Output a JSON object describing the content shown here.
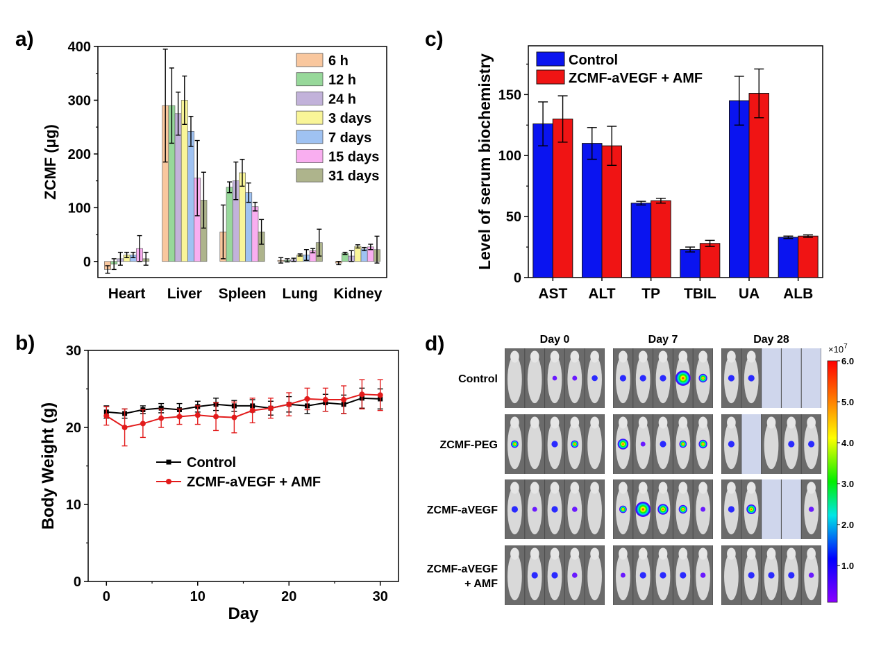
{
  "panels": {
    "a": "a)",
    "b": "b)",
    "c": "c)",
    "d": "d)"
  },
  "chart_data": [
    {
      "panel": "a",
      "type": "bar",
      "ylabel": "ZCMF (μg)",
      "ylim": [
        -30,
        400
      ],
      "yticks": [
        0,
        100,
        200,
        300,
        400
      ],
      "categories": [
        "Heart",
        "Liver",
        "Spleen",
        "Lung",
        "Kidney"
      ],
      "legend_position": "top-right",
      "series": [
        {
          "name": "6 h",
          "color": "#f9c79e",
          "values": [
            -15,
            290,
            55,
            2,
            -3
          ],
          "errors": [
            7,
            105,
            50,
            5,
            3
          ]
        },
        {
          "name": "12 h",
          "color": "#97d89a",
          "values": [
            -5,
            290,
            138,
            2,
            15
          ],
          "errors": [
            10,
            70,
            10,
            3,
            2
          ]
        },
        {
          "name": "24 h",
          "color": "#c2b2da",
          "values": [
            5,
            275,
            150,
            3,
            10
          ],
          "errors": [
            12,
            40,
            35,
            3,
            10
          ]
        },
        {
          "name": "3 days",
          "color": "#f9f598",
          "values": [
            12,
            300,
            165,
            12,
            28
          ],
          "errors": [
            5,
            45,
            25,
            2,
            3
          ]
        },
        {
          "name": "7 days",
          "color": "#9fc2f2",
          "values": [
            12,
            242,
            128,
            12,
            23
          ],
          "errors": [
            5,
            28,
            18,
            10,
            3
          ]
        },
        {
          "name": "15 days",
          "color": "#f9aef0",
          "values": [
            24,
            155,
            102,
            20,
            27
          ],
          "errors": [
            24,
            70,
            8,
            4,
            5
          ]
        },
        {
          "name": "31 days",
          "color": "#aeb48c",
          "values": [
            5,
            114,
            55,
            35,
            22
          ],
          "errors": [
            12,
            52,
            23,
            25,
            25
          ]
        }
      ]
    },
    {
      "panel": "b",
      "type": "line",
      "xlabel": "Day",
      "ylabel": "Body Weight (g)",
      "xlim": [
        -2,
        32
      ],
      "ylim": [
        0,
        30
      ],
      "xticks": [
        0,
        10,
        20,
        30
      ],
      "yticks": [
        0,
        10,
        20,
        30
      ],
      "legend_position": "center",
      "x": [
        0,
        2,
        4,
        6,
        8,
        10,
        12,
        14,
        16,
        18,
        20,
        22,
        24,
        26,
        28,
        30
      ],
      "series": [
        {
          "name": "Control",
          "color": "#000000",
          "marker": "square",
          "values": [
            22.0,
            21.8,
            22.3,
            22.5,
            22.3,
            22.7,
            23.0,
            22.8,
            22.8,
            22.5,
            23.0,
            22.8,
            23.2,
            23.0,
            23.8,
            23.7
          ],
          "errors": [
            0.8,
            0.6,
            0.5,
            0.6,
            0.8,
            0.7,
            0.8,
            0.7,
            0.8,
            0.9,
            1.0,
            1.0,
            1.1,
            1.2,
            1.3,
            1.3
          ]
        },
        {
          "name": "ZCMF-aVEGF + AMF",
          "color": "#e21b1b",
          "marker": "circle",
          "values": [
            21.5,
            20.0,
            20.5,
            21.2,
            21.4,
            21.6,
            21.4,
            21.3,
            22.2,
            22.5,
            23.0,
            23.7,
            23.6,
            23.6,
            24.3,
            24.2
          ],
          "errors": [
            1.2,
            2.4,
            1.8,
            1.2,
            1.0,
            1.2,
            1.8,
            2.0,
            1.6,
            1.3,
            1.5,
            1.4,
            1.5,
            1.8,
            1.9,
            2.0
          ]
        }
      ]
    },
    {
      "panel": "c",
      "type": "bar",
      "ylabel": "Level of serum biochemistry",
      "ylim": [
        0,
        190
      ],
      "yticks": [
        0,
        50,
        100,
        150
      ],
      "categories": [
        "AST",
        "ALT",
        "TP",
        "TBIL",
        "UA",
        "ALB"
      ],
      "legend_position": "top-left",
      "series": [
        {
          "name": "Control",
          "color": "#0a14f0",
          "values": [
            126,
            110,
            61,
            23,
            145,
            33
          ],
          "errors": [
            18,
            13,
            1.5,
            2,
            20,
            1
          ]
        },
        {
          "name": "ZCMF-aVEGF + AMF",
          "color": "#f01414",
          "values": [
            130,
            108,
            63,
            28,
            151,
            34
          ],
          "errors": [
            19,
            16,
            2,
            2.5,
            20,
            1
          ]
        }
      ]
    },
    {
      "panel": "d",
      "type": "heatmap",
      "columns": [
        "Day 0",
        "Day 7",
        "Day 28"
      ],
      "rows": [
        "Control",
        "ZCMF-PEG",
        "ZCMF-aVEGF",
        "ZCMF-aVEGF\n+ AMF"
      ],
      "colorbar": {
        "exponent_label": "×10",
        "exponent_power": "7",
        "ticks": [
          "6.0",
          "5.0",
          "4.0",
          "3.0",
          "2.0",
          "1.0"
        ],
        "tick_values": [
          6.0,
          5.0,
          4.0,
          3.0,
          2.0,
          1.0
        ],
        "range": [
          0.1,
          6.0
        ],
        "colors": [
          "#ff0000",
          "#ff8a00",
          "#ffff00",
          "#00ee00",
          "#00e6e6",
          "#0000ff",
          "#8a00ff"
        ]
      },
      "image_cells": [
        [
          {
            "mice": 5,
            "signal": [
              0,
              0,
              0.2,
              0.3,
              0.8
            ]
          },
          {
            "mice": 5,
            "signal": [
              1,
              1,
              1,
              5,
              2
            ]
          },
          {
            "mice": 2,
            "signal": [
              1,
              1
            ],
            "empty_slots": 3
          }
        ],
        [
          {
            "mice": 5,
            "signal": [
              1.5,
              0,
              1,
              1.5,
              0
            ]
          },
          {
            "mice": 5,
            "signal": [
              3,
              0.3,
              1,
              1.5,
              2
            ]
          },
          {
            "mice": 4,
            "signal": [
              1,
              0,
              1,
              1
            ],
            "empty_slots": 1,
            "empty_index": 1
          }
        ],
        [
          {
            "mice": 5,
            "signal": [
              1,
              0.3,
              1,
              0.5,
              0
            ]
          },
          {
            "mice": 5,
            "signal": [
              1.5,
              5,
              3,
              2,
              0.3
            ]
          },
          {
            "mice": 3,
            "signal": [
              1,
              2.5,
              0.5
            ],
            "empty_slots": 2,
            "empty_index": 2
          }
        ],
        [
          {
            "mice": 5,
            "signal": [
              0,
              1,
              1,
              0.5,
              0
            ]
          },
          {
            "mice": 5,
            "signal": [
              0.3,
              1,
              1,
              1,
              0.5
            ]
          },
          {
            "mice": 5,
            "signal": [
              0,
              1,
              1,
              1,
              0.5
            ]
          }
        ]
      ]
    }
  ]
}
